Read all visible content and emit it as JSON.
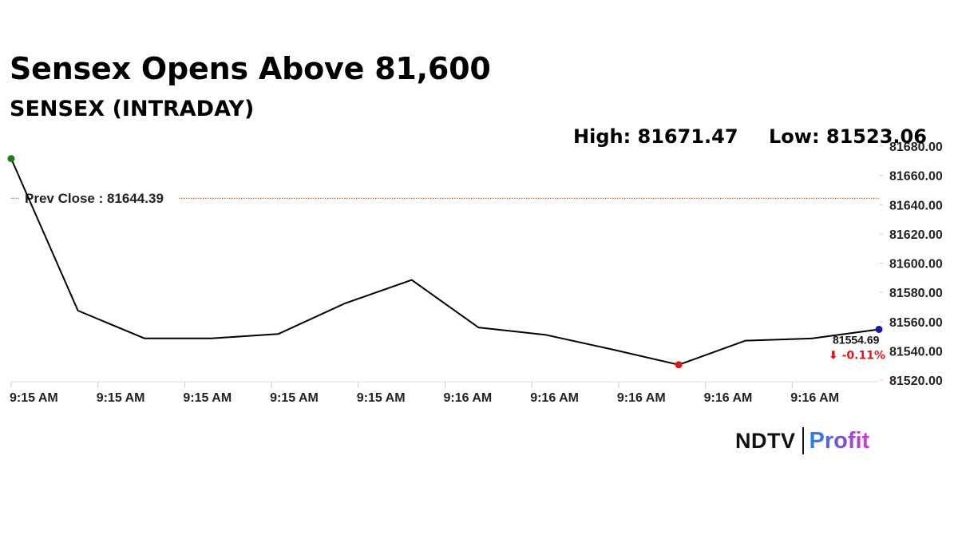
{
  "header": {
    "title": "Sensex Opens Above 81,600",
    "subtitle": "SENSEX (INTRADAY)",
    "high": "High: 81671.47",
    "low": "Low: 81523.06"
  },
  "brand": {
    "ndtv": "NDTV",
    "profit": "Profit"
  },
  "colors": {
    "line": "#000000",
    "prev_close_line": "#c0392b",
    "start_marker": "#1a7f1a",
    "low_marker": "#e0161a",
    "end_marker": "#1a1aa8",
    "change": "#e0161a"
  },
  "chart_data": {
    "type": "line",
    "title": "SENSEX (INTRADAY)",
    "xlabel": "",
    "ylabel": "",
    "x_ticks": [
      "9:15 AM",
      "9:15 AM",
      "9:15 AM",
      "9:15 AM",
      "9:15 AM",
      "9:16 AM",
      "9:16 AM",
      "9:16 AM",
      "9:16 AM",
      "9:16 AM"
    ],
    "y_ticks": [
      "81520.00",
      "81540.00",
      "81560.00",
      "81580.00",
      "81600.00",
      "81620.00",
      "81640.00",
      "81660.00",
      "81680.00"
    ],
    "ylim": [
      81520,
      81680
    ],
    "y_axis_position": "right",
    "grid": false,
    "series": [
      {
        "values": [
          81671.47,
          81567.5,
          81548.5,
          81548.5,
          81551.5,
          81572.5,
          81588.5,
          81556.0,
          81551.0,
          81541.0,
          81530.5,
          81547.0,
          81548.5,
          81554.69
        ]
      }
    ],
    "prev_close": {
      "label": "Prev Close : 81644.39",
      "value": 81644.39
    },
    "last_value_label": "81554.69",
    "change_label": "⬇ -0.11%",
    "markers": [
      {
        "name": "start",
        "index": 0
      },
      {
        "name": "low",
        "index": 10
      },
      {
        "name": "end",
        "index": 13
      }
    ]
  }
}
